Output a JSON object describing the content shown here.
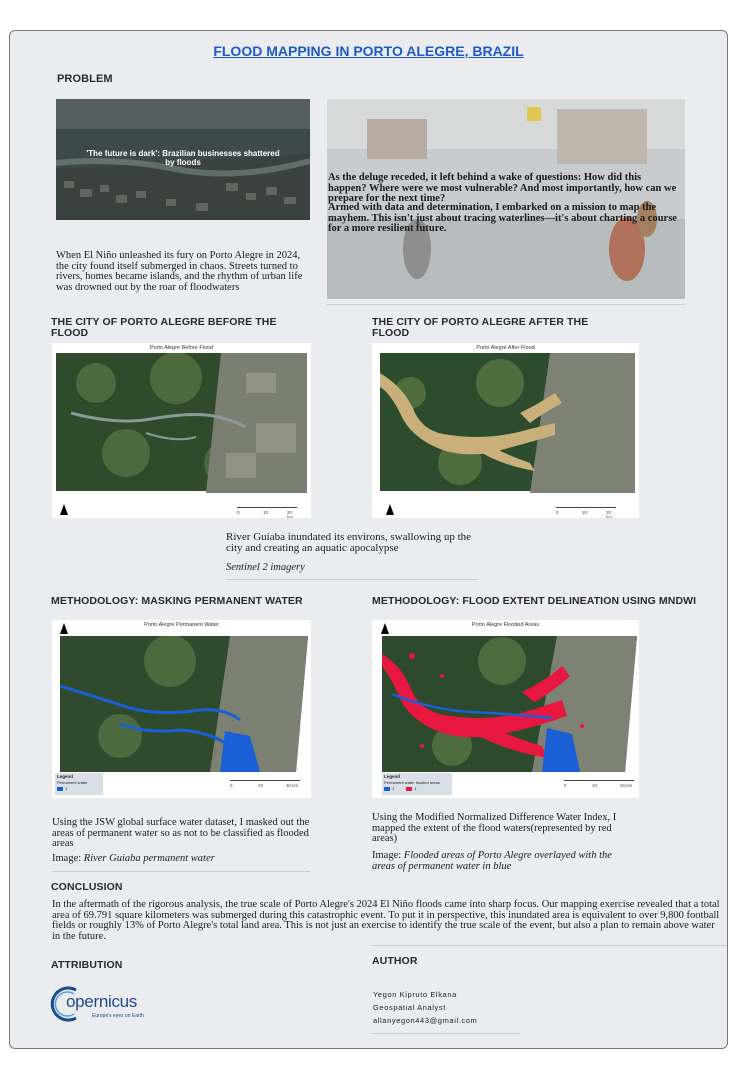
{
  "title": "FLOOD MAPPING IN PORTO ALEGRE, BRAZIL",
  "problem": {
    "heading": "PROBLEM",
    "news_headline": "'The future is dark': Brazilian businesses shattered by floods",
    "intro_text": "When El Niño unleashed its fury on Porto Alegre in 2024, the city found itself submerged in chaos. Streets turned to rivers, homes became islands, and the rhythm of urban life was drowned out by the roar of floodwaters",
    "questions_text": "As the deluge receded, it left behind a wake of questions: How did this happen? Where were we most vulnerable? And most importantly, how can we prepare for the next time?",
    "mission_text": "Armed with data and determination, I embarked on a mission to map the mayhem. This isn't just about tracing waterlines—it's about charting a course for a more resilient future."
  },
  "before": {
    "heading": "THE CITY OF PORTO ALEGRE BEFORE THE FLOOD",
    "map_title": "Porto Alegre Before Flood",
    "scale": [
      "0",
      "10",
      "20 km"
    ]
  },
  "after": {
    "heading": "THE CITY OF PORTO ALEGRE AFTER THE FLOOD",
    "map_title": "Porto Alegre After Flood",
    "scale": [
      "0",
      "10",
      "20 km"
    ]
  },
  "guiaba": {
    "caption": "River Guiaba inundated its environs, swallowing up the city and creating an aquatic apocalypse",
    "source": "Sentinel 2 imagery"
  },
  "masking": {
    "heading": "METHODOLOGY: MASKING PERMANENT WATER",
    "map_title": "Porto Alegre Permanent Water",
    "legend_title": "Legend",
    "legend_item": "Permanent water",
    "legend_value": "1",
    "scale": [
      "0",
      "10",
      "20 km"
    ],
    "text": "Using the JSW global surface water dataset, I masked out the areas of permanent water so as not to be classified as flooded areas",
    "image_label": "Image:",
    "image_caption": "River Guiaba permanent water"
  },
  "mndwi": {
    "heading": "METHODOLOGY: FLOOD EXTENT DELINEATION USING MNDWI",
    "map_title": "Porto Alegre Flooded Areas",
    "legend_title": "Legend",
    "legend_item1": "Permanent water",
    "legend_item2": "flooded areas",
    "legend_value1": "1",
    "legend_value2": "1",
    "scale": [
      "0",
      "10",
      "20 km"
    ],
    "text": "Using the Modified Normalized Difference Water Index, I mapped the extent of the flood waters(represented by red areas)",
    "image_label": "Image:",
    "image_caption": "Flooded areas of Porto Alegre overlayed with the areas of permanent water in blue"
  },
  "conclusion": {
    "heading": "CONCLUSION",
    "text": "In the aftermath of the rigorous analysis, the true scale of Porto Alegre's 2024 El Niño floods came into sharp focus. Our mapping exercise revealed that a total area of 69.791 square kilometers was submerged during this catastrophic event. To put it in perspective, this inundated area is equivalent to over 9,800 football fields or roughly 13% of Porto Alegre's total land area. This is not just an exercise to identify the true scale of the event, but also a plan to remain above water in the future."
  },
  "attribution": {
    "heading": "ATTRIBUTION",
    "logo_text": "opernicus",
    "logo_tagline": "Europe's eyes on Earth"
  },
  "author": {
    "heading": "AUTHOR",
    "name": "Yegon Kipruto Elkana",
    "role": "Geospatial Analyst",
    "email": "allanyegon443@gmail.com"
  },
  "colors": {
    "title": "#1f5bc4",
    "panel": "#eaecef",
    "flood_red": "#e8173f",
    "water_blue": "#1b5fd6",
    "after_flood_tan": "#c9b07a"
  }
}
